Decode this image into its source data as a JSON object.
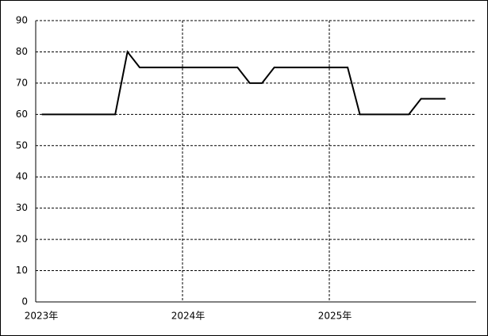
{
  "chart_data": {
    "type": "line",
    "categories": [
      "2023年",
      null,
      null,
      null,
      null,
      null,
      null,
      null,
      null,
      null,
      null,
      null,
      "2024年",
      null,
      null,
      null,
      null,
      null,
      null,
      null,
      null,
      null,
      null,
      null,
      "2025年",
      null,
      null,
      null,
      null,
      null,
      null,
      null,
      null,
      null
    ],
    "values": [
      60,
      60,
      60,
      60,
      60,
      60,
      60,
      80,
      75,
      75,
      75,
      75,
      75,
      75,
      75,
      75,
      75,
      70,
      70,
      75,
      75,
      75,
      75,
      75,
      75,
      75,
      60,
      60,
      60,
      60,
      60,
      65,
      65,
      65
    ],
    "color": "#000000",
    "ylim": [
      0,
      90
    ],
    "yticks": [
      0,
      10,
      20,
      30,
      40,
      50,
      60,
      70,
      80,
      90
    ],
    "grid": true
  }
}
